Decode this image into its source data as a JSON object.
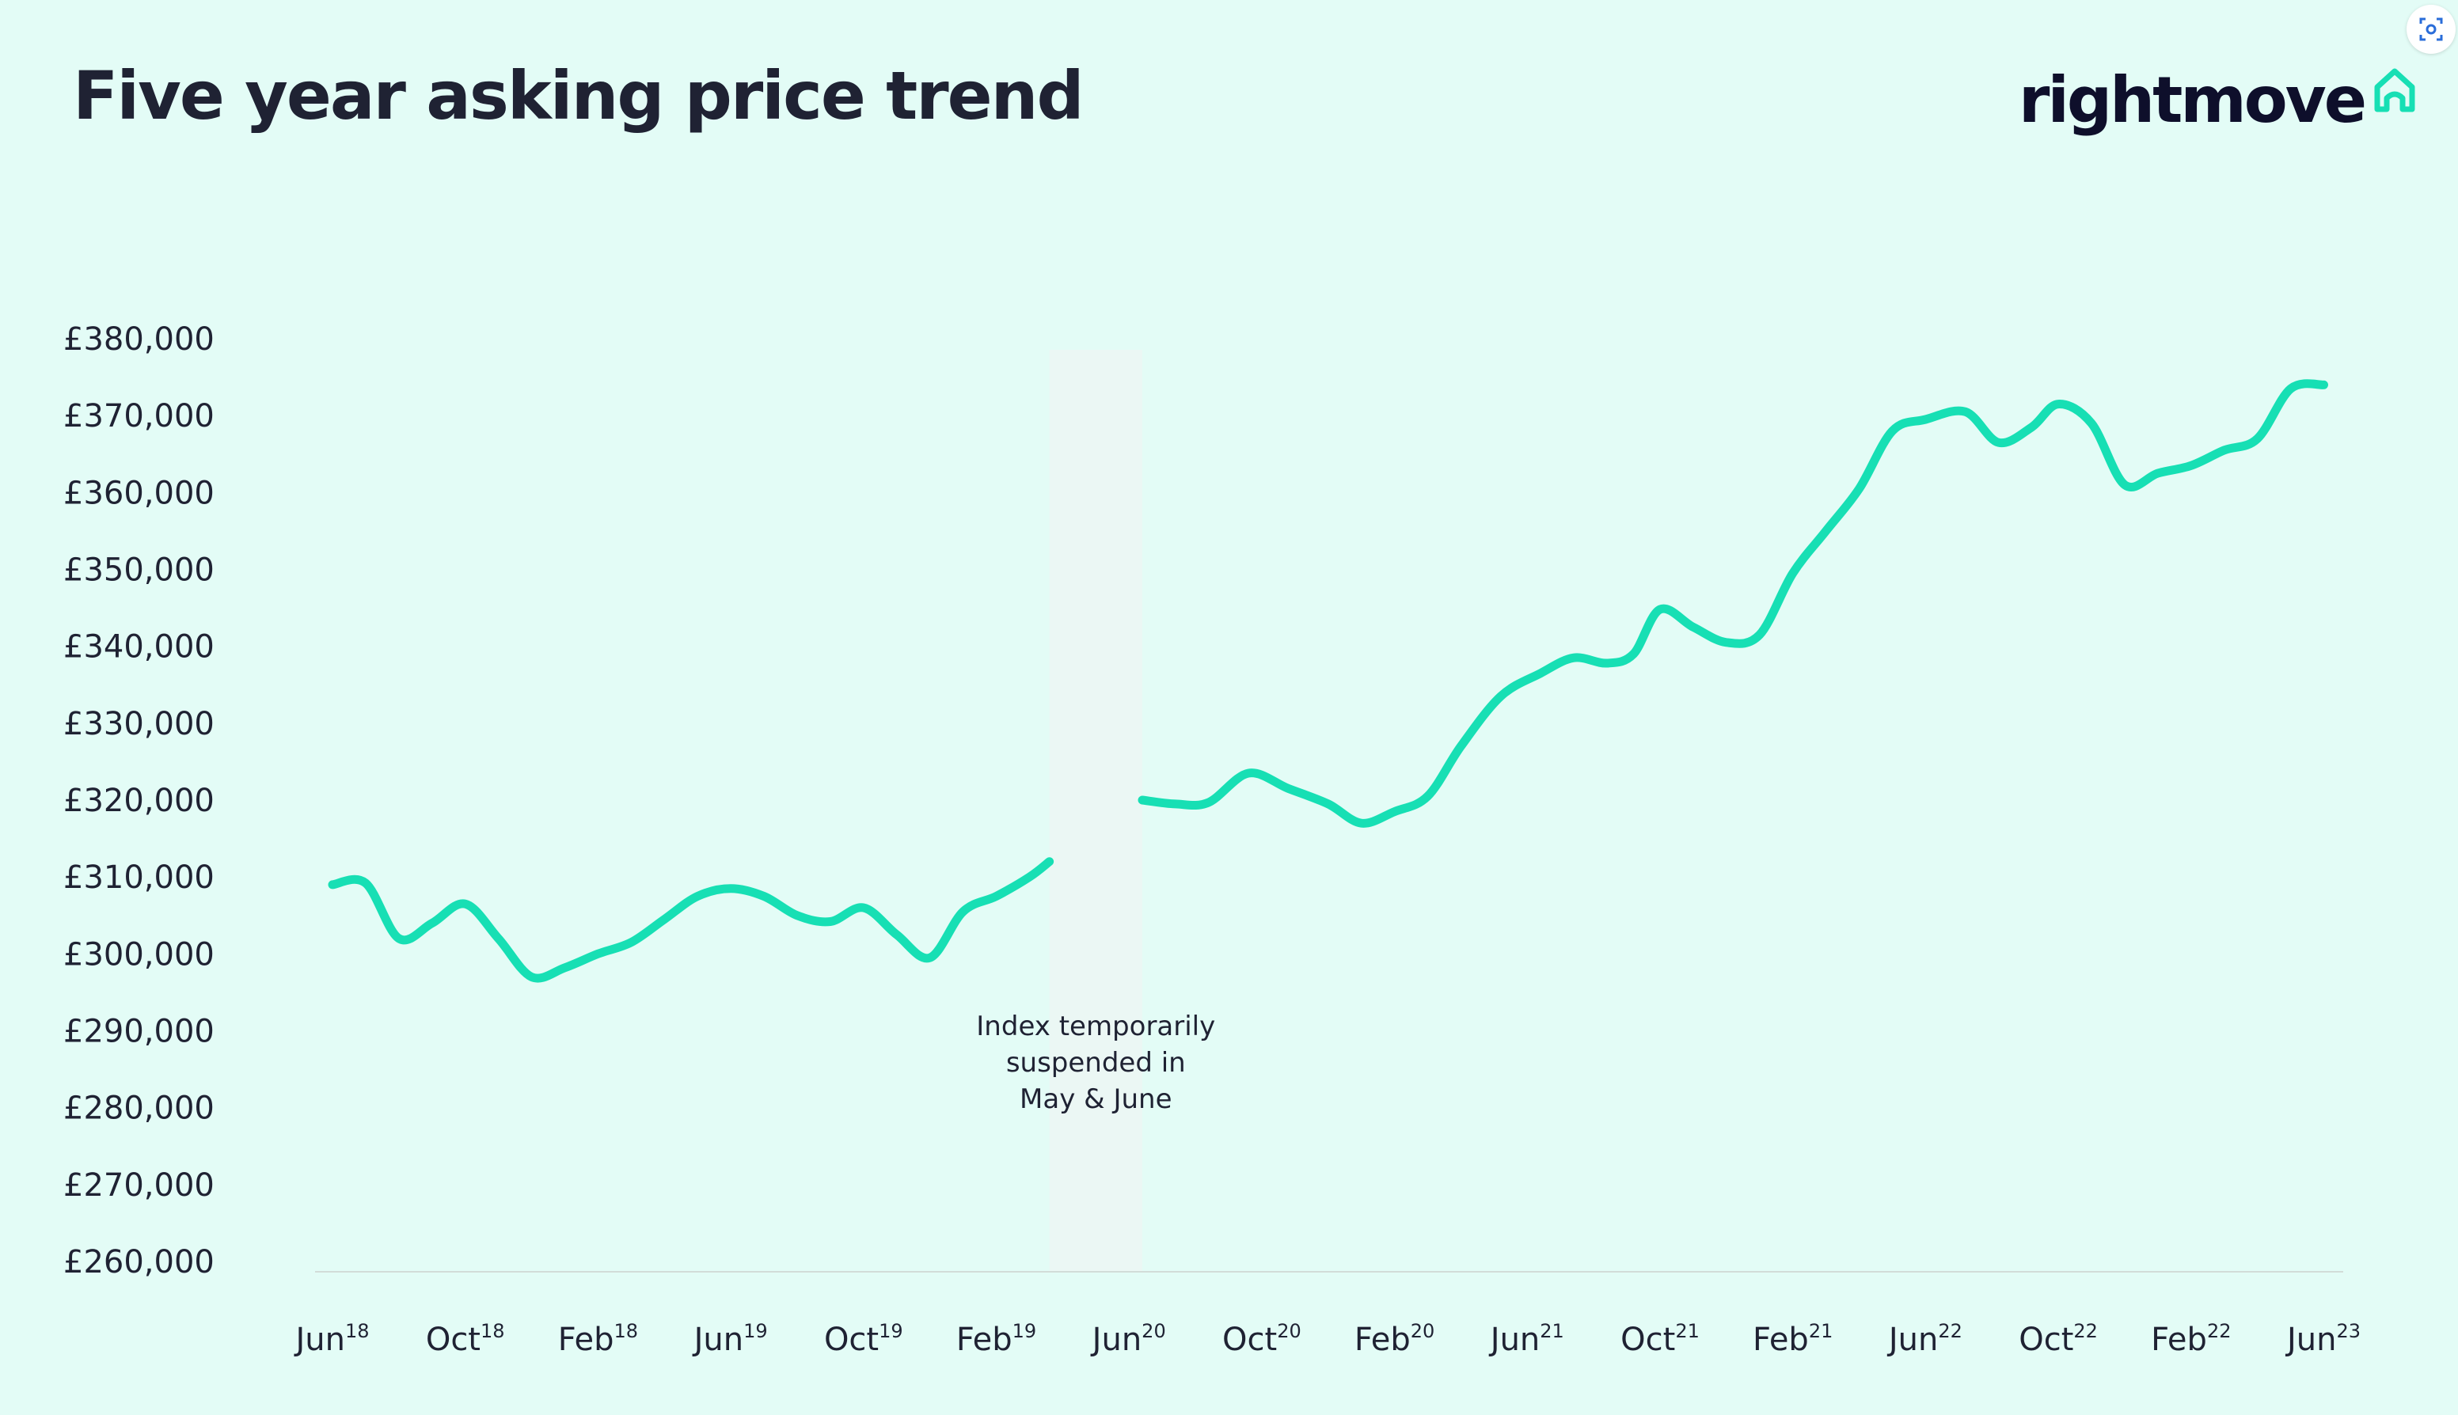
{
  "header": {
    "title": "Five year asking price trend",
    "logo_text": "rightmove"
  },
  "icons": {
    "logo": "house-outline-icon",
    "screen_capture": "screen-capture-icon"
  },
  "colors": {
    "background": "#e3fcf6",
    "line": "#17dfb4",
    "text": "#1f2233",
    "logo": "#0e0f2b",
    "band": "#ebf7f4"
  },
  "chart_data": {
    "type": "line",
    "title": "Five year asking price trend",
    "xlabel": "",
    "ylabel": "",
    "ylim": [
      260000,
      380000
    ],
    "yticks": [
      "£380,000",
      "£370,000",
      "£360,000",
      "£350,000",
      "£340,000",
      "£330,000",
      "£320,000",
      "£310,000",
      "£300,000",
      "£290,000",
      "£280,000",
      "£270,000",
      "£260,000"
    ],
    "xticks": [
      {
        "month": "Jun",
        "year": "18"
      },
      {
        "month": "Oct",
        "year": "18"
      },
      {
        "month": "Feb",
        "year": "18"
      },
      {
        "month": "Jun",
        "year": "19"
      },
      {
        "month": "Oct",
        "year": "19"
      },
      {
        "month": "Feb",
        "year": "19"
      },
      {
        "month": "Jun",
        "year": "20"
      },
      {
        "month": "Oct",
        "year": "20"
      },
      {
        "month": "Feb",
        "year": "20"
      },
      {
        "month": "Jun",
        "year": "21"
      },
      {
        "month": "Oct",
        "year": "21"
      },
      {
        "month": "Feb",
        "year": "21"
      },
      {
        "month": "Jun",
        "year": "22"
      },
      {
        "month": "Oct",
        "year": "22"
      },
      {
        "month": "Feb",
        "year": "22"
      },
      {
        "month": "Jun",
        "year": "23"
      }
    ],
    "series": [
      {
        "segments": [
          [
            [
              0,
              309000
            ],
            [
              0.25,
              309200
            ],
            [
              0.5,
              302000
            ],
            [
              0.75,
              304000
            ],
            [
              1.0,
              306500
            ],
            [
              1.25,
              302000
            ],
            [
              1.5,
              297000
            ],
            [
              1.75,
              298200
            ],
            [
              2.0,
              300000
            ],
            [
              2.25,
              301500
            ],
            [
              2.5,
              304500
            ],
            [
              2.75,
              307500
            ],
            [
              3.0,
              308500
            ],
            [
              3.25,
              307500
            ],
            [
              3.5,
              305000
            ],
            [
              3.75,
              304200
            ],
            [
              4.0,
              306000
            ],
            [
              4.25,
              302500
            ],
            [
              4.5,
              299500
            ],
            [
              4.75,
              305500
            ],
            [
              5.0,
              307500
            ],
            [
              5.25,
              310000
            ],
            [
              5.4,
              312000
            ]
          ],
          [
            [
              6.1,
              320000
            ],
            [
              6.35,
              319500
            ],
            [
              6.6,
              319700
            ],
            [
              6.9,
              323500
            ],
            [
              7.2,
              321500
            ],
            [
              7.5,
              319500
            ],
            [
              7.75,
              317000
            ],
            [
              8.0,
              318500
            ],
            [
              8.25,
              320500
            ],
            [
              8.5,
              327000
            ],
            [
              8.8,
              333500
            ],
            [
              9.1,
              336500
            ],
            [
              9.35,
              338500
            ],
            [
              9.6,
              337800
            ],
            [
              9.8,
              339000
            ],
            [
              10.0,
              344800
            ],
            [
              10.25,
              342500
            ],
            [
              10.5,
              340500
            ],
            [
              10.75,
              341500
            ],
            [
              11.0,
              349500
            ],
            [
              11.25,
              355000
            ],
            [
              11.5,
              360500
            ],
            [
              11.75,
              368000
            ],
            [
              12.0,
              369500
            ],
            [
              12.3,
              370500
            ],
            [
              12.55,
              366500
            ],
            [
              12.8,
              368500
            ],
            [
              13.0,
              371500
            ],
            [
              13.25,
              369000
            ],
            [
              13.5,
              361000
            ],
            [
              13.75,
              362500
            ],
            [
              14.0,
              363500
            ],
            [
              14.25,
              365500
            ],
            [
              14.5,
              367000
            ],
            [
              14.75,
              373500
            ],
            [
              15.0,
              374000
            ]
          ]
        ]
      }
    ],
    "suspended_band": {
      "x_start": 5.4,
      "x_end": 6.1
    },
    "annotation": [
      "Index temporarily",
      "suspended in",
      "May & June"
    ]
  }
}
